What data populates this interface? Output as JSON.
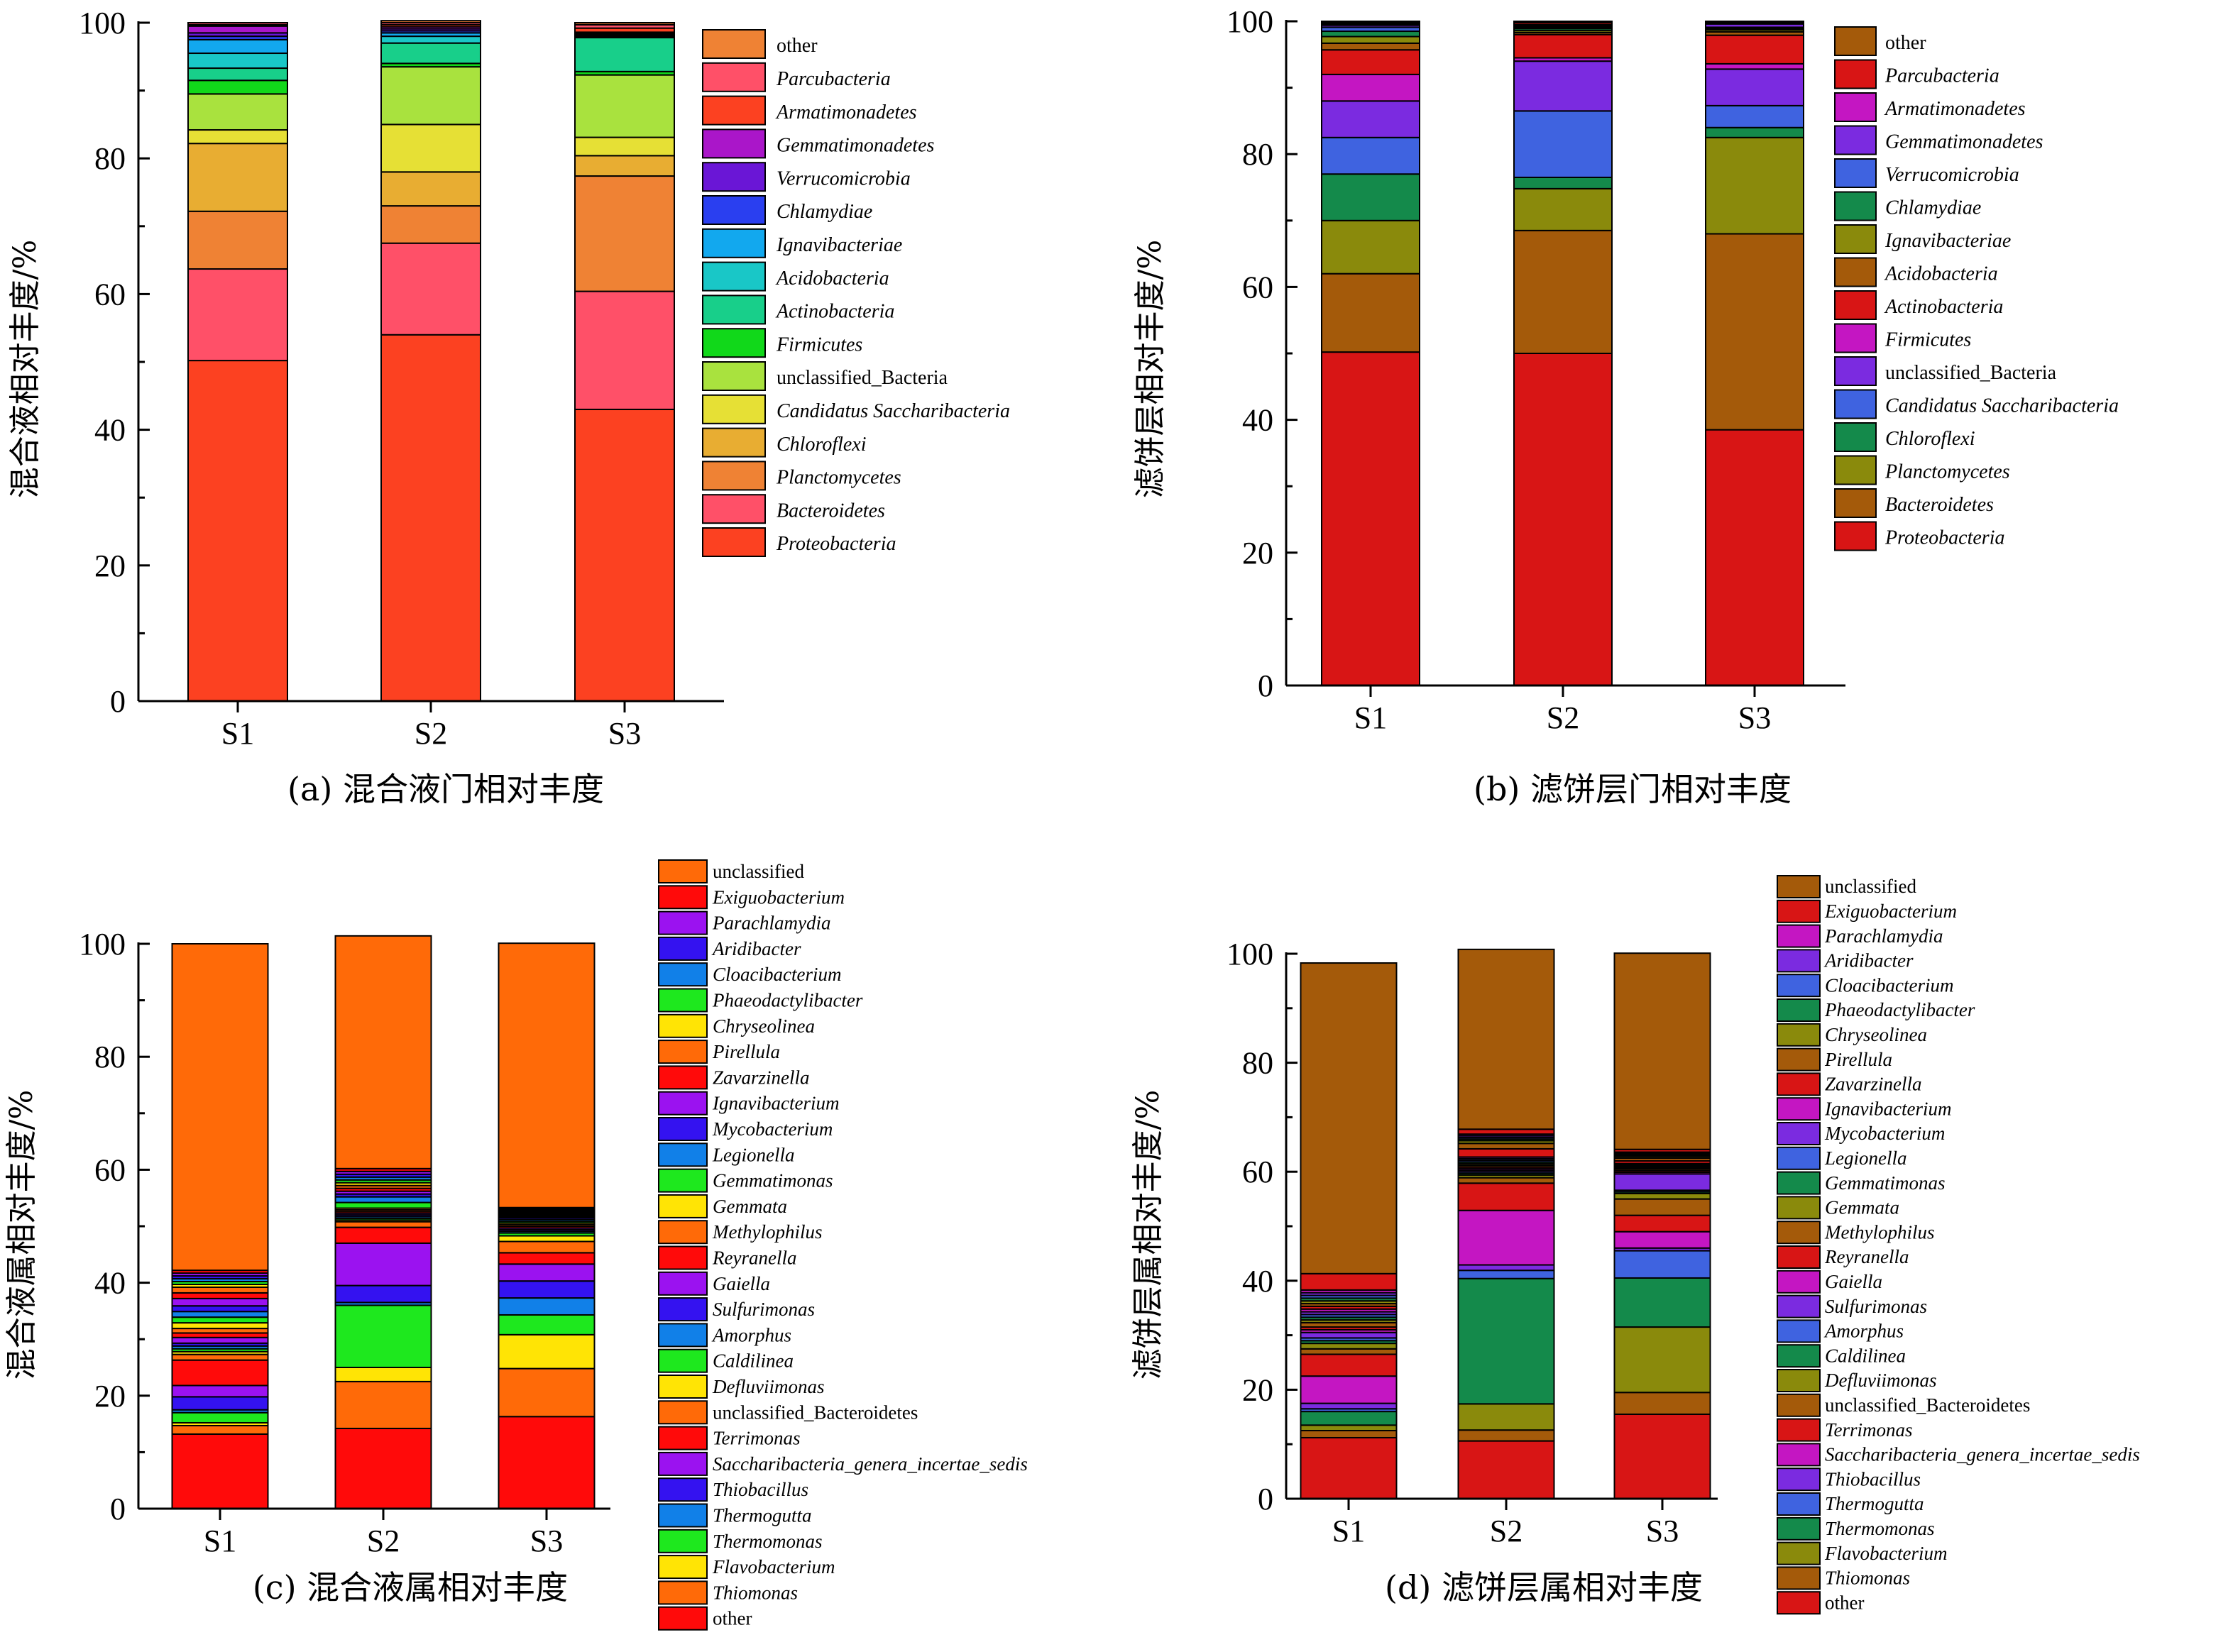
{
  "chart_data": [
    {
      "type": "bar",
      "stacked": true,
      "categories": [
        "S1",
        "S2",
        "S3"
      ],
      "ylabel": "混合液相对丰度/%",
      "ylim": [
        0,
        100
      ],
      "yticks": [
        0,
        20,
        40,
        60,
        80,
        100
      ],
      "caption": "(a) 混合液门相对丰度",
      "legend_position": "right",
      "series": [
        {
          "name": "Proteobacteria",
          "italic": true,
          "color": "#fc4121",
          "values": [
            50.2,
            54.0,
            43.0
          ]
        },
        {
          "name": "Bacteroidetes",
          "italic": true,
          "color": "#ff5068",
          "values": [
            13.5,
            13.5,
            17.4
          ]
        },
        {
          "name": "Planctomycetes",
          "italic": true,
          "color": "#ef8234",
          "values": [
            8.5,
            5.5,
            17.0
          ]
        },
        {
          "name": "Chloroflexi",
          "italic": true,
          "color": "#e8ad32",
          "values": [
            10.0,
            5.0,
            3.0
          ]
        },
        {
          "name": "Candidatus Saccharibacteria",
          "italic": true,
          "color": "#e6e035",
          "values": [
            2.0,
            7.0,
            2.7
          ]
        },
        {
          "name": "unclassified_Bacteria",
          "italic": false,
          "color": "#a9e23e",
          "values": [
            5.3,
            8.5,
            9.2
          ]
        },
        {
          "name": "Firmicutes",
          "italic": true,
          "color": "#11d81a",
          "values": [
            2.0,
            0.5,
            0.5
          ]
        },
        {
          "name": "Actinobacteria",
          "italic": true,
          "color": "#18cf8a",
          "values": [
            1.8,
            3.0,
            5.0
          ]
        },
        {
          "name": "Acidobacteria",
          "italic": true,
          "color": "#19c7c7",
          "values": [
            2.2,
            1.0,
            0.2
          ]
        },
        {
          "name": "Ignavibacteriae",
          "italic": true,
          "color": "#12a8ee",
          "values": [
            2.0,
            0.5,
            0.2
          ]
        },
        {
          "name": "Chlamydiae",
          "italic": true,
          "color": "#2a3ff0",
          "values": [
            0.5,
            0.3,
            0.2
          ]
        },
        {
          "name": "Verrucomicrobia",
          "italic": true,
          "color": "#6a16d6",
          "values": [
            0.5,
            0.3,
            0.1
          ]
        },
        {
          "name": "Gemmatimonadetes",
          "italic": true,
          "color": "#aa16c9",
          "values": [
            1.0,
            0.3,
            0.1
          ]
        },
        {
          "name": "Armatimonadetes",
          "italic": true,
          "color": "#fc4121",
          "values": [
            0.2,
            0.3,
            0.6
          ]
        },
        {
          "name": "Parcubacteria",
          "italic": true,
          "color": "#ff5068",
          "values": [
            0.3,
            0.3,
            0.5
          ]
        },
        {
          "name": "other",
          "italic": false,
          "color": "#ef8234",
          "values": [
            0.0,
            0.3,
            0.3
          ]
        }
      ]
    },
    {
      "type": "bar",
      "stacked": true,
      "categories": [
        "S1",
        "S2",
        "S3"
      ],
      "ylabel": "滤饼层相对丰度/%",
      "ylim": [
        0,
        100
      ],
      "yticks": [
        0,
        20,
        40,
        60,
        80,
        100
      ],
      "caption": "(b) 滤饼层门相对丰度",
      "legend_position": "right",
      "series": [
        {
          "name": "Proteobacteria",
          "italic": true,
          "color": "#d81515",
          "values": [
            50.2,
            50.0,
            38.5
          ]
        },
        {
          "name": "Bacteroidetes",
          "italic": true,
          "color": "#a45a0a",
          "values": [
            11.8,
            18.5,
            29.5
          ]
        },
        {
          "name": "Planctomycetes",
          "italic": true,
          "color": "#8a8a0c",
          "values": [
            8.0,
            6.3,
            14.5
          ]
        },
        {
          "name": "Chloroflexi",
          "italic": true,
          "color": "#148a4b",
          "values": [
            7.0,
            1.7,
            1.5
          ]
        },
        {
          "name": "Candidatus Saccharibacteria",
          "italic": true,
          "color": "#3f63e0",
          "values": [
            5.5,
            10.0,
            3.3
          ]
        },
        {
          "name": "unclassified_Bacteria",
          "italic": false,
          "color": "#7b2be0",
          "values": [
            5.5,
            7.5,
            5.5
          ]
        },
        {
          "name": "Firmicutes",
          "italic": true,
          "color": "#c416c2",
          "values": [
            4.0,
            0.5,
            0.8
          ]
        },
        {
          "name": "Actinobacteria",
          "italic": true,
          "color": "#d81515",
          "values": [
            3.7,
            3.5,
            4.3
          ]
        },
        {
          "name": "Acidobacteria",
          "italic": true,
          "color": "#a45a0a",
          "values": [
            1.0,
            0.3,
            0.5
          ]
        },
        {
          "name": "Ignavibacteriae",
          "italic": true,
          "color": "#8a8a0c",
          "values": [
            1.0,
            0.3,
            0.3
          ]
        },
        {
          "name": "Chlamydiae",
          "italic": true,
          "color": "#148a4b",
          "values": [
            0.8,
            0.3,
            0.2
          ]
        },
        {
          "name": "Verrucomicrobia",
          "italic": true,
          "color": "#3f63e0",
          "values": [
            0.6,
            0.2,
            0.2
          ]
        },
        {
          "name": "Gemmatimonadetes",
          "italic": true,
          "color": "#7b2be0",
          "values": [
            0.3,
            0.2,
            0.5
          ]
        },
        {
          "name": "Armatimonadetes",
          "italic": true,
          "color": "#c416c2",
          "values": [
            0.2,
            0.2,
            0.2
          ]
        },
        {
          "name": "Parcubacteria",
          "italic": true,
          "color": "#d81515",
          "values": [
            0.2,
            0.3,
            0.2
          ]
        },
        {
          "name": "other",
          "italic": false,
          "color": "#a45a0a",
          "values": [
            0.2,
            0.2,
            0.0
          ]
        }
      ]
    },
    {
      "type": "bar",
      "stacked": true,
      "categories": [
        "S1",
        "S2",
        "S3"
      ],
      "ylabel": "混合液属相对丰度/%",
      "ylim": [
        0,
        100
      ],
      "yticks": [
        0,
        20,
        40,
        60,
        80,
        100
      ],
      "caption": "(c) 混合液属相对丰度",
      "legend_position": "right",
      "series": [
        {
          "name": "other",
          "italic": false,
          "color": "#ff0a0a",
          "values": [
            13.2,
            14.2,
            16.3
          ]
        },
        {
          "name": "Thiomonas",
          "italic": true,
          "color": "#ff6a08",
          "values": [
            1.5,
            8.3,
            8.5
          ]
        },
        {
          "name": "Flavobacterium",
          "italic": true,
          "color": "#ffe405",
          "values": [
            0.5,
            2.5,
            6.0
          ]
        },
        {
          "name": "Thermomonas",
          "italic": true,
          "color": "#1ee81e",
          "values": [
            1.8,
            11.0,
            3.5
          ]
        },
        {
          "name": "Thermogutta",
          "italic": true,
          "color": "#1180e8",
          "values": [
            0.5,
            0.5,
            3.0
          ]
        },
        {
          "name": "Thiobacillus",
          "italic": true,
          "color": "#3412f0",
          "values": [
            2.3,
            3.0,
            3.0
          ]
        },
        {
          "name": "Saccharibacteria_genera_incertae_sedis",
          "italic": true,
          "color": "#9b12f0",
          "values": [
            2.0,
            7.5,
            3.0
          ]
        },
        {
          "name": "Terrimonas",
          "italic": true,
          "color": "#ff0a0a",
          "values": [
            4.5,
            2.8,
            2.0
          ]
        },
        {
          "name": "unclassified_Bacteroidetes",
          "italic": false,
          "color": "#ff6a08",
          "values": [
            1.0,
            1.0,
            2.0
          ]
        },
        {
          "name": "Defluviimonas",
          "italic": true,
          "color": "#ffe405",
          "values": [
            0.5,
            0.3,
            1.0
          ]
        },
        {
          "name": "Caldilinea",
          "italic": true,
          "color": "#1ee81e",
          "values": [
            0.5,
            0.3,
            0.5
          ]
        },
        {
          "name": "Amorphus",
          "italic": true,
          "color": "#1180e8",
          "values": [
            0.5,
            0.3,
            0.3
          ]
        },
        {
          "name": "Sulfurimonas",
          "italic": true,
          "color": "#3412f0",
          "values": [
            0.5,
            0.3,
            0.3
          ]
        },
        {
          "name": "Gaiella",
          "italic": true,
          "color": "#9b12f0",
          "values": [
            1.0,
            0.3,
            0.3
          ]
        },
        {
          "name": "Reyranella",
          "italic": true,
          "color": "#ff0a0a",
          "values": [
            0.8,
            0.3,
            0.3
          ]
        },
        {
          "name": "Methylophilus",
          "italic": true,
          "color": "#ff6a08",
          "values": [
            0.8,
            0.3,
            0.3
          ]
        },
        {
          "name": "Gemmata",
          "italic": true,
          "color": "#ffe405",
          "values": [
            1.0,
            0.3,
            0.3
          ]
        },
        {
          "name": "Gemmatimonas",
          "italic": true,
          "color": "#1ee81e",
          "values": [
            1.0,
            1.0,
            0.3
          ]
        },
        {
          "name": "Legionella",
          "italic": true,
          "color": "#1180e8",
          "values": [
            1.0,
            1.0,
            0.3
          ]
        },
        {
          "name": "Mycobacterium",
          "italic": true,
          "color": "#3412f0",
          "values": [
            1.0,
            0.5,
            0.3
          ]
        },
        {
          "name": "Ignavibacterium",
          "italic": true,
          "color": "#9b12f0",
          "values": [
            1.3,
            0.5,
            0.2
          ]
        },
        {
          "name": "Zavarzinella",
          "italic": true,
          "color": "#ff0a0a",
          "values": [
            1.0,
            0.5,
            0.2
          ]
        },
        {
          "name": "Pirellula",
          "italic": true,
          "color": "#ff6a08",
          "values": [
            1.0,
            0.5,
            0.2
          ]
        },
        {
          "name": "Chryseolinea",
          "italic": true,
          "color": "#ffe405",
          "values": [
            0.5,
            0.5,
            0.2
          ]
        },
        {
          "name": "Phaeodactylibacter",
          "italic": true,
          "color": "#1ee81e",
          "values": [
            0.5,
            0.5,
            0.2
          ]
        },
        {
          "name": "Cloacibacterium",
          "italic": true,
          "color": "#1180e8",
          "values": [
            0.5,
            0.5,
            0.2
          ]
        },
        {
          "name": "Aridibacter",
          "italic": true,
          "color": "#3412f0",
          "values": [
            0.5,
            0.5,
            0.2
          ]
        },
        {
          "name": "Parachlamydia",
          "italic": true,
          "color": "#9b12f0",
          "values": [
            0.5,
            0.5,
            0.2
          ]
        },
        {
          "name": "Exiguobacterium",
          "italic": true,
          "color": "#ff0a0a",
          "values": [
            0.5,
            0.5,
            0.2
          ]
        },
        {
          "name": "unclassified",
          "italic": false,
          "color": "#ff6a08",
          "values": [
            57.8,
            41.2,
            46.8
          ]
        }
      ]
    },
    {
      "type": "bar",
      "stacked": true,
      "categories": [
        "S1",
        "S2",
        "S3"
      ],
      "ylabel": "滤饼层属相对丰度/%",
      "ylim": [
        0,
        100
      ],
      "yticks": [
        0,
        20,
        40,
        60,
        80,
        100
      ],
      "caption": "(d) 滤饼层属相对丰度",
      "legend_position": "right",
      "series": [
        {
          "name": "other",
          "italic": false,
          "color": "#d81515",
          "values": [
            11.2,
            10.6,
            15.5
          ]
        },
        {
          "name": "Thiomonas",
          "italic": true,
          "color": "#a45a0a",
          "values": [
            1.3,
            2.0,
            4.0
          ]
        },
        {
          "name": "Flavobacterium",
          "italic": true,
          "color": "#8a8a0c",
          "values": [
            1.0,
            4.8,
            12.0
          ]
        },
        {
          "name": "Thermomonas",
          "italic": true,
          "color": "#148a4b",
          "values": [
            2.5,
            23.0,
            9.0
          ]
        },
        {
          "name": "Thermogutta",
          "italic": true,
          "color": "#3f63e0",
          "values": [
            0.5,
            1.5,
            5.0
          ]
        },
        {
          "name": "Thiobacillus",
          "italic": true,
          "color": "#7b2be0",
          "values": [
            1.0,
            1.0,
            0.5
          ]
        },
        {
          "name": "Saccharibacteria_genera_incertae_sedis",
          "italic": true,
          "color": "#c416c2",
          "values": [
            5.0,
            10.0,
            3.0
          ]
        },
        {
          "name": "Terrimonas",
          "italic": true,
          "color": "#d81515",
          "values": [
            4.0,
            5.0,
            3.0
          ]
        },
        {
          "name": "unclassified_Bacteroidetes",
          "italic": false,
          "color": "#a45a0a",
          "values": [
            1.0,
            1.0,
            3.0
          ]
        },
        {
          "name": "Defluviimonas",
          "italic": true,
          "color": "#8a8a0c",
          "values": [
            1.0,
            0.5,
            1.0
          ]
        },
        {
          "name": "Caldilinea",
          "italic": true,
          "color": "#148a4b",
          "values": [
            0.5,
            0.3,
            0.3
          ]
        },
        {
          "name": "Amorphus",
          "italic": true,
          "color": "#3f63e0",
          "values": [
            0.5,
            0.3,
            0.3
          ]
        },
        {
          "name": "Sulfurimonas",
          "italic": true,
          "color": "#7b2be0",
          "values": [
            1.0,
            0.3,
            3.0
          ]
        },
        {
          "name": "Gaiella",
          "italic": true,
          "color": "#c416c2",
          "values": [
            0.5,
            0.3,
            0.3
          ]
        },
        {
          "name": "Reyranella",
          "italic": true,
          "color": "#d81515",
          "values": [
            0.5,
            0.3,
            0.3
          ]
        },
        {
          "name": "Methylophilus",
          "italic": true,
          "color": "#a45a0a",
          "values": [
            0.8,
            0.3,
            0.3
          ]
        },
        {
          "name": "Gemmata",
          "italic": true,
          "color": "#8a8a0c",
          "values": [
            0.5,
            0.3,
            0.2
          ]
        },
        {
          "name": "Gemmatimonas",
          "italic": true,
          "color": "#148a4b",
          "values": [
            0.5,
            0.3,
            0.2
          ]
        },
        {
          "name": "Legionella",
          "italic": true,
          "color": "#3f63e0",
          "values": [
            0.5,
            0.3,
            0.2
          ]
        },
        {
          "name": "Mycobacterium",
          "italic": true,
          "color": "#7b2be0",
          "values": [
            0.5,
            0.3,
            0.2
          ]
        },
        {
          "name": "Ignavibacterium",
          "italic": true,
          "color": "#c416c2",
          "values": [
            0.5,
            0.3,
            0.2
          ]
        },
        {
          "name": "Zavarzinella",
          "italic": true,
          "color": "#d81515",
          "values": [
            0.5,
            1.5,
            0.5
          ]
        },
        {
          "name": "Pirellula",
          "italic": true,
          "color": "#a45a0a",
          "values": [
            0.5,
            1.0,
            0.5
          ]
        },
        {
          "name": "Chryseolinea",
          "italic": true,
          "color": "#8a8a0c",
          "values": [
            0.5,
            0.5,
            0.3
          ]
        },
        {
          "name": "Phaeodactylibacter",
          "italic": true,
          "color": "#148a4b",
          "values": [
            0.5,
            0.3,
            0.2
          ]
        },
        {
          "name": "Cloacibacterium",
          "italic": true,
          "color": "#3f63e0",
          "values": [
            0.5,
            0.3,
            0.2
          ]
        },
        {
          "name": "Aridibacter",
          "italic": true,
          "color": "#7b2be0",
          "values": [
            0.5,
            0.3,
            0.2
          ]
        },
        {
          "name": "Parachlamydia",
          "italic": true,
          "color": "#c416c2",
          "values": [
            0.5,
            0.3,
            0.2
          ]
        },
        {
          "name": "Exiguobacterium",
          "italic": true,
          "color": "#d81515",
          "values": [
            3.0,
            0.9,
            0.5
          ]
        },
        {
          "name": "unclassified",
          "italic": false,
          "color": "#a45a0a",
          "values": [
            57.0,
            33.0,
            36.0
          ]
        }
      ]
    }
  ]
}
